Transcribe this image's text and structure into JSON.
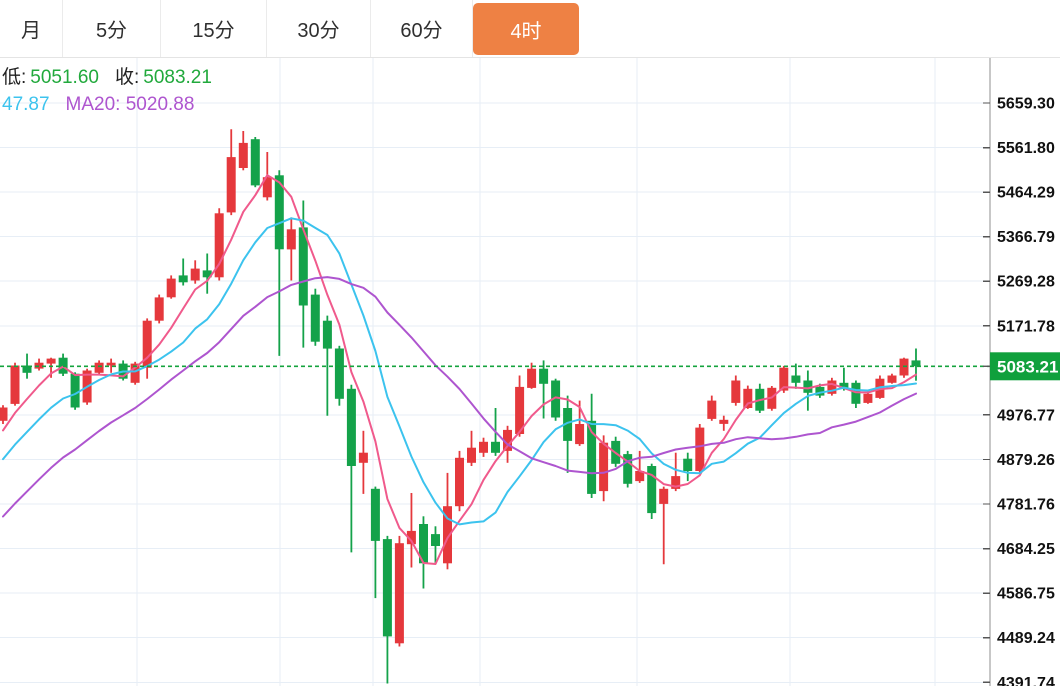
{
  "toolbar": {
    "tabs": [
      {
        "label": "月",
        "selected": false
      },
      {
        "label": "5分",
        "selected": false
      },
      {
        "label": "15分",
        "selected": false
      },
      {
        "label": "30分",
        "selected": false
      },
      {
        "label": "60分",
        "selected": false
      },
      {
        "label": "4时",
        "selected": true
      }
    ]
  },
  "info_bar": {
    "line1": [
      {
        "label": "低:",
        "value": "5051.60"
      },
      {
        "label": "收:",
        "value": "5083.21"
      }
    ],
    "line2": [
      {
        "text": "47.87",
        "color_key": "ma10"
      },
      {
        "text": "MA20: 5020.88",
        "color_key": "ma20"
      }
    ]
  },
  "price_axis": {
    "tick_labels": [
      "5659.30",
      "5561.80",
      "5464.29",
      "5366.79",
      "5269.28",
      "5171.78",
      "4976.77",
      "4879.26",
      "4781.76",
      "4684.25",
      "4586.75",
      "4489.24",
      "4391.74"
    ],
    "current_price_tag": "5083.21"
  },
  "chart_data": {
    "type": "candlestick",
    "timeframe": "4时",
    "ylim": [
      4391.74,
      5659.3
    ],
    "y_tick_step": 97.505,
    "grid": true,
    "current_price": 5083.21,
    "last_candle": {
      "low": 5051.6,
      "close": 5083.21
    },
    "ma_labels": {
      "ma10_partial": "47.87",
      "ma20": "MA20: 5020.88"
    },
    "moving_average_windows": [
      5,
      10,
      20
    ],
    "ma_left_edge_values": {
      "ma5": 4948,
      "ma10": 4859,
      "ma20": 4742
    },
    "candles_ohlc": [
      [
        4964,
        4998,
        4957,
        4993
      ],
      [
        5001,
        5091,
        4997,
        5085
      ],
      [
        5085,
        5111,
        5056,
        5069
      ],
      [
        5078,
        5100,
        5074,
        5091
      ],
      [
        5089,
        5102,
        5058,
        5100
      ],
      [
        5102,
        5111,
        5062,
        5067
      ],
      [
        5067,
        5070,
        4988,
        4993
      ],
      [
        5004,
        5078,
        4999,
        5074
      ],
      [
        5069,
        5096,
        5065,
        5091
      ],
      [
        5085,
        5100,
        5069,
        5091
      ],
      [
        5089,
        5096,
        5052,
        5056
      ],
      [
        5047,
        5093,
        5043,
        5089
      ],
      [
        5080,
        5188,
        5056,
        5183
      ],
      [
        5183,
        5240,
        5177,
        5234
      ],
      [
        5234,
        5282,
        5231,
        5275
      ],
      [
        5282,
        5319,
        5260,
        5267
      ],
      [
        5271,
        5315,
        5264,
        5297
      ],
      [
        5293,
        5330,
        5242,
        5278
      ],
      [
        5278,
        5429,
        5271,
        5418
      ],
      [
        5420,
        5602,
        5414,
        5541
      ],
      [
        5517,
        5598,
        5512,
        5572
      ],
      [
        5580,
        5585,
        5475,
        5479
      ],
      [
        5453,
        5552,
        5446,
        5497
      ],
      [
        5501,
        5512,
        5106,
        5339
      ],
      [
        5339,
        5409,
        5271,
        5383
      ],
      [
        5387,
        5446,
        5124,
        5216
      ],
      [
        5240,
        5253,
        5128,
        5137
      ],
      [
        5183,
        5194,
        4975,
        5122
      ],
      [
        5122,
        5128,
        4997,
        5012
      ],
      [
        5034,
        5043,
        4676,
        4865
      ],
      [
        4872,
        4942,
        4804,
        4894
      ],
      [
        4815,
        4820,
        4576,
        4701
      ],
      [
        4705,
        4712,
        4389,
        4492
      ],
      [
        4477,
        4712,
        4470,
        4696
      ],
      [
        4694,
        4806,
        4643,
        4723
      ],
      [
        4738,
        4755,
        4597,
        4652
      ],
      [
        4716,
        4733,
        4653,
        4690
      ],
      [
        4652,
        4850,
        4639,
        4777
      ],
      [
        4777,
        4898,
        4766,
        4883
      ],
      [
        4872,
        4942,
        4865,
        4905
      ],
      [
        4894,
        4927,
        4885,
        4918
      ],
      [
        4918,
        4992,
        4887,
        4894
      ],
      [
        4898,
        4953,
        4872,
        4944
      ],
      [
        4935,
        5063,
        4929,
        5038
      ],
      [
        5036,
        5091,
        5034,
        5078
      ],
      [
        5078,
        5096,
        4969,
        5045
      ],
      [
        5052,
        5056,
        4964,
        4971
      ],
      [
        4992,
        5019,
        4850,
        4920
      ],
      [
        4913,
        5008,
        4909,
        4957
      ],
      [
        4964,
        5023,
        4795,
        4804
      ],
      [
        4810,
        4932,
        4788,
        4916
      ],
      [
        4920,
        4929,
        4863,
        4870
      ],
      [
        4891,
        4898,
        4818,
        4826
      ],
      [
        4832,
        4898,
        4828,
        4854
      ],
      [
        4865,
        4870,
        4749,
        4762
      ],
      [
        4782,
        4820,
        4650,
        4815
      ],
      [
        4815,
        4894,
        4810,
        4843
      ],
      [
        4881,
        4894,
        4832,
        4854
      ],
      [
        4854,
        4957,
        4850,
        4949
      ],
      [
        4968,
        5019,
        4964,
        5008
      ],
      [
        4957,
        4975,
        4942,
        4966
      ],
      [
        5003,
        5063,
        4997,
        5052
      ],
      [
        4992,
        5041,
        4990,
        5034
      ],
      [
        5034,
        5045,
        4981,
        4986
      ],
      [
        4990,
        5040,
        4986,
        5036
      ],
      [
        5030,
        5084,
        5025,
        5080
      ],
      [
        5063,
        5089,
        5034,
        5047
      ],
      [
        5052,
        5074,
        4986,
        5025
      ],
      [
        5038,
        5045,
        5014,
        5019
      ],
      [
        5023,
        5058,
        5019,
        5052
      ],
      [
        5047,
        5080,
        5030,
        5034
      ],
      [
        5047,
        5052,
        4992,
        5001
      ],
      [
        5003,
        5030,
        5001,
        5023
      ],
      [
        5014,
        5063,
        5012,
        5056
      ],
      [
        5047,
        5067,
        5045,
        5063
      ],
      [
        5063,
        5102,
        5058,
        5100
      ],
      [
        5096,
        5122,
        5051.6,
        5083.21
      ]
    ],
    "colors": {
      "up": "#e5383c",
      "down": "#14a24a",
      "ma5": "#f05a8c",
      "ma10": "#3cc3ee",
      "ma20": "#ae55cf",
      "price_line": "#14a33e",
      "price_tag_bg": "#10a03c",
      "price_tag_text": "#ffffff",
      "info_value_green": "#21a93c",
      "tab_selected_bg": "#ee8144",
      "grid": "#e7eef6",
      "axis_line": "#8f8f8f",
      "axis_text": "#111111"
    }
  }
}
